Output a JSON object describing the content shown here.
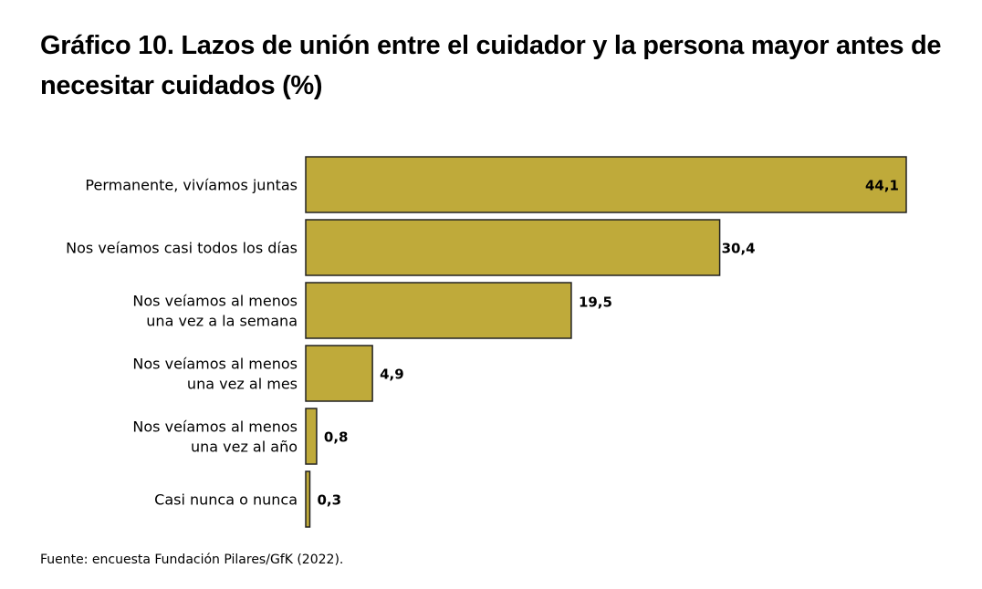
{
  "chart_data": {
    "type": "bar",
    "orientation": "horizontal",
    "title": "Gráfico 10. Lazos de unión entre el cuidador y la persona mayor antes de necesitar cuidados (%)",
    "categories": [
      [
        "Permanente, vivíamos juntas"
      ],
      [
        "Nos veíamos casi todos los días"
      ],
      [
        "Nos veíamos al menos",
        "una vez a la semana"
      ],
      [
        "Nos veíamos al menos",
        "una vez al mes"
      ],
      [
        "Nos veíamos al menos",
        "una vez al año"
      ],
      [
        "Casi nunca o nunca"
      ]
    ],
    "values": [
      44.1,
      30.4,
      19.5,
      4.9,
      0.8,
      0.3
    ],
    "data_labels": [
      "44,1",
      "30,4",
      "19,5",
      "4,9",
      "0,8",
      "0,3"
    ],
    "bar_color": "#bfaa3a",
    "xlim": [
      0,
      44.1
    ],
    "grid": false,
    "source": "Fuente: encuesta Fundación Pilares/GfK (2022)."
  }
}
